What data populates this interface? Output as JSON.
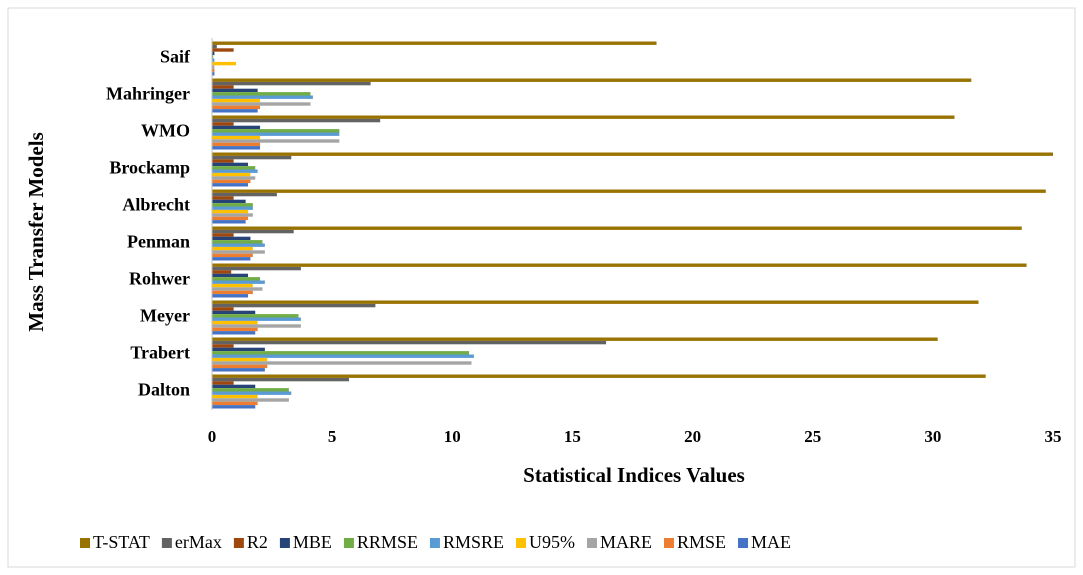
{
  "chart_data": {
    "type": "bar",
    "orientation": "horizontal",
    "xlabel": "Statistical Indices Values",
    "ylabel": "Mass Transfer Models",
    "categories": [
      "Dalton",
      "Trabert",
      "Meyer",
      "Rohwer",
      "Penman",
      "Albrecht",
      "Brockamp",
      "WMO",
      "Mahringer",
      "Saif"
    ],
    "xlim": [
      0,
      35
    ],
    "xticks": [
      0,
      5,
      10,
      15,
      20,
      25,
      30,
      35
    ],
    "grid": false,
    "legend": "bottom",
    "series": [
      {
        "name": "T-STAT",
        "color": "#997300",
        "values": [
          32.2,
          30.2,
          31.9,
          33.9,
          33.7,
          34.7,
          35.0,
          30.9,
          31.6,
          18.5
        ]
      },
      {
        "name": "erMax",
        "color": "#636363",
        "values": [
          5.7,
          16.4,
          6.8,
          3.7,
          3.4,
          2.7,
          3.3,
          7.0,
          6.6,
          0.2
        ]
      },
      {
        "name": "R2",
        "color": "#9e480e",
        "values": [
          0.9,
          0.9,
          0.9,
          0.8,
          0.9,
          0.9,
          0.9,
          0.9,
          0.9,
          0.9
        ]
      },
      {
        "name": "MBE",
        "color": "#264478",
        "values": [
          1.8,
          2.2,
          1.8,
          1.5,
          1.6,
          1.4,
          1.5,
          2.0,
          1.9,
          0.1
        ]
      },
      {
        "name": "RRMSE",
        "color": "#70ad47",
        "values": [
          3.2,
          10.7,
          3.6,
          2.0,
          2.1,
          1.7,
          1.8,
          5.3,
          4.1,
          0.05
        ]
      },
      {
        "name": "RMSRE",
        "color": "#5b9bd5",
        "values": [
          3.3,
          10.9,
          3.7,
          2.2,
          2.2,
          1.7,
          1.9,
          5.3,
          4.2,
          0.1
        ]
      },
      {
        "name": "U95%",
        "color": "#ffc000",
        "values": [
          1.9,
          2.3,
          1.9,
          1.7,
          1.7,
          1.5,
          1.6,
          2.0,
          2.0,
          1.0
        ]
      },
      {
        "name": "MARE",
        "color": "#a5a5a5",
        "values": [
          3.2,
          10.8,
          3.7,
          2.1,
          2.2,
          1.7,
          1.8,
          5.3,
          4.1,
          0.1
        ]
      },
      {
        "name": "RMSE",
        "color": "#ed7d31",
        "values": [
          1.9,
          2.3,
          1.9,
          1.7,
          1.7,
          1.5,
          1.6,
          2.0,
          2.0,
          0.1
        ]
      },
      {
        "name": "MAE",
        "color": "#4472c4",
        "values": [
          1.8,
          2.2,
          1.8,
          1.5,
          1.6,
          1.4,
          1.5,
          2.0,
          1.9,
          0.1
        ]
      }
    ]
  }
}
